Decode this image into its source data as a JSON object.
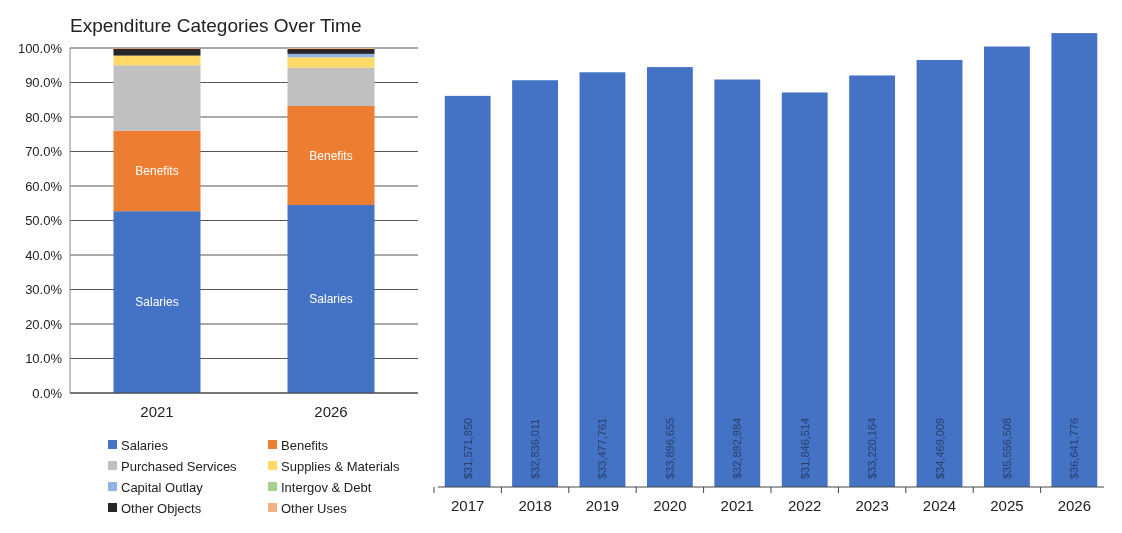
{
  "chart_data": [
    {
      "type": "bar",
      "title": "Expenditure Categories Over Time",
      "stacked": true,
      "categories": [
        "2021",
        "2026"
      ],
      "series": [
        {
          "name": "Salaries",
          "color": "#4472c4",
          "values": [
            52.7,
            54.5
          ],
          "value_labels": [
            "Salaries",
            "Salaries"
          ]
        },
        {
          "name": "Benefits",
          "color": "#ed7d31",
          "values": [
            23.3,
            28.7
          ],
          "value_labels": [
            "Benefits",
            "Benefits"
          ]
        },
        {
          "name": "Purchased Services",
          "color": "#c0c0c0",
          "values": [
            19,
            11.1
          ]
        },
        {
          "name": "Supplies & Materials",
          "color": "#ffd966",
          "values": [
            2.8,
            3
          ]
        },
        {
          "name": "Capital Outlay",
          "color": "#8fb4e3",
          "values": [
            0,
            1
          ]
        },
        {
          "name": "Intergov & Debt",
          "color": "#a9d18e",
          "values": [
            0,
            0
          ]
        },
        {
          "name": "Other Objects",
          "color": "#262626",
          "values": [
            2,
            1.4
          ]
        },
        {
          "name": "Other Uses",
          "color": "#f4b183",
          "values": [
            0.2,
            0.3
          ]
        }
      ],
      "ylim": [
        0,
        100
      ],
      "yticks": [
        {
          "value": 0,
          "label": "0.0%"
        },
        {
          "value": 10,
          "label": "10.0%"
        },
        {
          "value": 20,
          "label": "20.0%"
        },
        {
          "value": 30,
          "label": "30.0%"
        },
        {
          "value": 40,
          "label": "40.0%"
        },
        {
          "value": 50,
          "label": "50.0%"
        },
        {
          "value": 60,
          "label": "60.0%"
        },
        {
          "value": 70,
          "label": "70.0%"
        },
        {
          "value": 80,
          "label": "80.0%"
        },
        {
          "value": 90,
          "label": "90.0%"
        },
        {
          "value": 100,
          "label": "100.0%"
        }
      ],
      "grid": "y",
      "legend": "bottom"
    },
    {
      "type": "bar",
      "categories": [
        "2017",
        "2018",
        "2019",
        "2020",
        "2021",
        "2022",
        "2023",
        "2024",
        "2025",
        "2026"
      ],
      "series": [
        {
          "color": "#4472c4",
          "values": [
            31571850,
            32836011,
            33477761,
            33896655,
            32892984,
            31846514,
            33220164,
            34469009,
            35556508,
            36641776
          ],
          "value_labels": [
            "$31,571,850",
            "$32,836,011",
            "$33,477,761",
            "$33,896,655",
            "$32,892,984",
            "$31,846,514",
            "$33,220,164",
            "$34,469,009",
            "$35,556,508",
            "$36,641,776"
          ]
        }
      ]
    }
  ]
}
